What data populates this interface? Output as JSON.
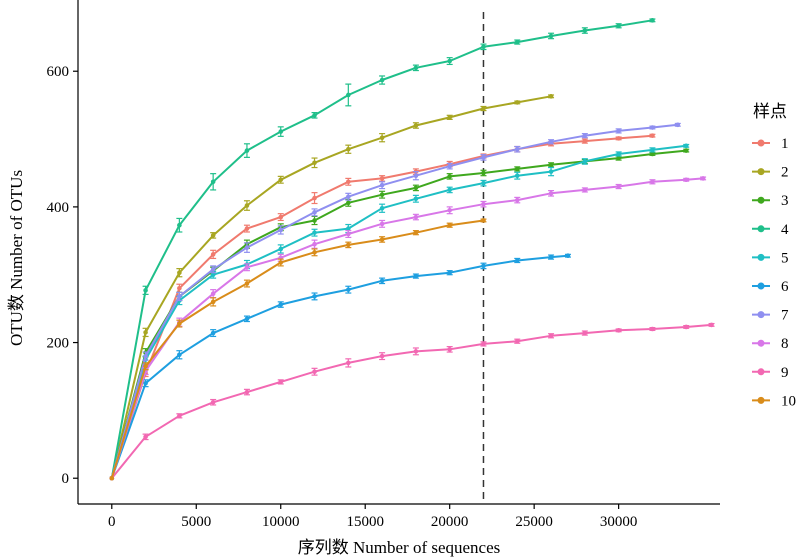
{
  "chart_data": {
    "type": "line",
    "title": "",
    "xlabel": "序列数 Number of sequences",
    "ylabel": "OTU数  Number of OTUs",
    "xlim": [
      -2000,
      36000
    ],
    "ylim": [
      -38,
      705
    ],
    "xticks": [
      0,
      5000,
      10000,
      15000,
      20000,
      25000,
      30000
    ],
    "yticks": [
      0,
      200,
      400,
      600
    ],
    "grid": false,
    "reference_line": {
      "x": 22000,
      "style": "dashed"
    },
    "legend": {
      "title": "样点",
      "position": "right"
    },
    "series": [
      {
        "name": "1",
        "color": "#F07A6E",
        "x": [
          0,
          2000,
          4000,
          6000,
          8000,
          10000,
          12000,
          14000,
          16000,
          18000,
          20000,
          22000,
          24000,
          26000,
          28000,
          30000,
          32000
        ],
        "y": [
          0,
          155,
          280,
          330,
          368,
          385,
          413,
          437,
          442,
          452,
          463,
          475,
          485,
          493,
          497,
          501,
          505
        ],
        "err": [
          0,
          5,
          6,
          6,
          5,
          5,
          8,
          5,
          4,
          4,
          4,
          3,
          4,
          3,
          3,
          2,
          2
        ]
      },
      {
        "name": "2",
        "color": "#A8A622",
        "x": [
          0,
          2000,
          4000,
          6000,
          8000,
          10000,
          12000,
          14000,
          16000,
          18000,
          20000,
          22000,
          24000,
          26000
        ],
        "y": [
          0,
          215,
          303,
          358,
          402,
          440,
          465,
          485,
          502,
          520,
          532,
          545,
          554,
          563
        ],
        "err": [
          0,
          6,
          6,
          4,
          7,
          5,
          7,
          6,
          6,
          4,
          3,
          3,
          2,
          2
        ]
      },
      {
        "name": "3",
        "color": "#3FA81E",
        "x": [
          0,
          2000,
          4000,
          6000,
          8000,
          10000,
          12000,
          14000,
          16000,
          18000,
          20000,
          22000,
          24000,
          26000,
          28000,
          30000,
          32000,
          34000
        ],
        "y": [
          0,
          185,
          268,
          306,
          345,
          370,
          380,
          406,
          418,
          428,
          445,
          450,
          456,
          462,
          467,
          472,
          478,
          483
        ],
        "err": [
          0,
          6,
          6,
          5,
          6,
          5,
          6,
          5,
          5,
          4,
          4,
          4,
          3,
          3,
          3,
          3,
          2,
          2
        ]
      },
      {
        "name": "4",
        "color": "#1FBF8A",
        "x": [
          0,
          2000,
          4000,
          6000,
          8000,
          10000,
          12000,
          14000,
          16000,
          18000,
          20000,
          22000,
          24000,
          26000,
          28000,
          30000,
          32000
        ],
        "y": [
          0,
          277,
          373,
          437,
          483,
          511,
          535,
          565,
          587,
          605,
          615,
          636,
          643,
          652,
          660,
          667,
          675
        ],
        "err": [
          0,
          6,
          10,
          12,
          10,
          7,
          4,
          16,
          6,
          4,
          5,
          4,
          3,
          4,
          4,
          3,
          2
        ]
      },
      {
        "name": "5",
        "color": "#1FBFC4",
        "x": [
          0,
          2000,
          4000,
          6000,
          8000,
          10000,
          12000,
          14000,
          16000,
          18000,
          20000,
          22000,
          24000,
          26000,
          28000,
          30000,
          32000,
          34000
        ],
        "y": [
          0,
          175,
          262,
          300,
          315,
          338,
          362,
          368,
          398,
          412,
          425,
          435,
          446,
          452,
          467,
          478,
          484,
          490
        ],
        "err": [
          0,
          5,
          6,
          5,
          6,
          6,
          5,
          6,
          6,
          5,
          4,
          4,
          5,
          6,
          4,
          3,
          3,
          2
        ]
      },
      {
        "name": "6",
        "color": "#1E9FE0",
        "x": [
          0,
          2000,
          4000,
          6000,
          8000,
          10000,
          12000,
          14000,
          16000,
          18000,
          20000,
          22000,
          24000,
          26000,
          27000
        ],
        "y": [
          0,
          140,
          182,
          214,
          235,
          256,
          268,
          278,
          291,
          298,
          303,
          313,
          321,
          326,
          328
        ],
        "err": [
          0,
          5,
          6,
          5,
          4,
          4,
          5,
          5,
          4,
          3,
          3,
          4,
          3,
          3,
          2
        ]
      },
      {
        "name": "7",
        "color": "#8F8FF0",
        "x": [
          0,
          2000,
          4000,
          6000,
          8000,
          10000,
          12000,
          14000,
          16000,
          18000,
          20000,
          22000,
          24000,
          26000,
          28000,
          30000,
          32000,
          33500
        ],
        "y": [
          0,
          180,
          268,
          308,
          340,
          366,
          392,
          415,
          432,
          446,
          460,
          473,
          485,
          496,
          505,
          512,
          517,
          521
        ],
        "err": [
          0,
          6,
          6,
          5,
          7,
          6,
          5,
          5,
          5,
          6,
          4,
          4,
          4,
          3,
          3,
          3,
          2,
          2
        ]
      },
      {
        "name": "8",
        "color": "#D877E8",
        "x": [
          0,
          2000,
          4000,
          6000,
          8000,
          10000,
          12000,
          14000,
          16000,
          18000,
          20000,
          22000,
          24000,
          26000,
          28000,
          30000,
          32000,
          34000,
          35000
        ],
        "y": [
          0,
          158,
          230,
          272,
          311,
          325,
          345,
          360,
          375,
          385,
          395,
          404,
          410,
          420,
          425,
          430,
          437,
          440,
          442
        ],
        "err": [
          0,
          5,
          6,
          6,
          5,
          5,
          6,
          5,
          5,
          4,
          5,
          4,
          4,
          4,
          3,
          3,
          3,
          2,
          2
        ]
      },
      {
        "name": "9",
        "color": "#F268B2",
        "x": [
          0,
          2000,
          4000,
          6000,
          8000,
          10000,
          12000,
          14000,
          16000,
          18000,
          20000,
          22000,
          24000,
          26000,
          28000,
          30000,
          32000,
          34000,
          35500
        ],
        "y": [
          0,
          61,
          92,
          112,
          127,
          142,
          157,
          170,
          180,
          187,
          190,
          198,
          202,
          210,
          214,
          218,
          220,
          223,
          226
        ],
        "err": [
          0,
          4,
          3,
          4,
          4,
          3,
          5,
          6,
          5,
          5,
          4,
          3,
          3,
          3,
          3,
          2,
          2,
          2,
          2
        ]
      },
      {
        "name": "10",
        "color": "#D98C1A",
        "x": [
          0,
          2000,
          4000,
          6000,
          8000,
          10000,
          12000,
          14000,
          16000,
          18000,
          20000,
          22000
        ],
        "y": [
          0,
          165,
          228,
          260,
          287,
          318,
          333,
          344,
          352,
          362,
          373,
          380
        ],
        "err": [
          0,
          5,
          5,
          6,
          5,
          5,
          5,
          4,
          4,
          3,
          3,
          2
        ]
      }
    ]
  }
}
